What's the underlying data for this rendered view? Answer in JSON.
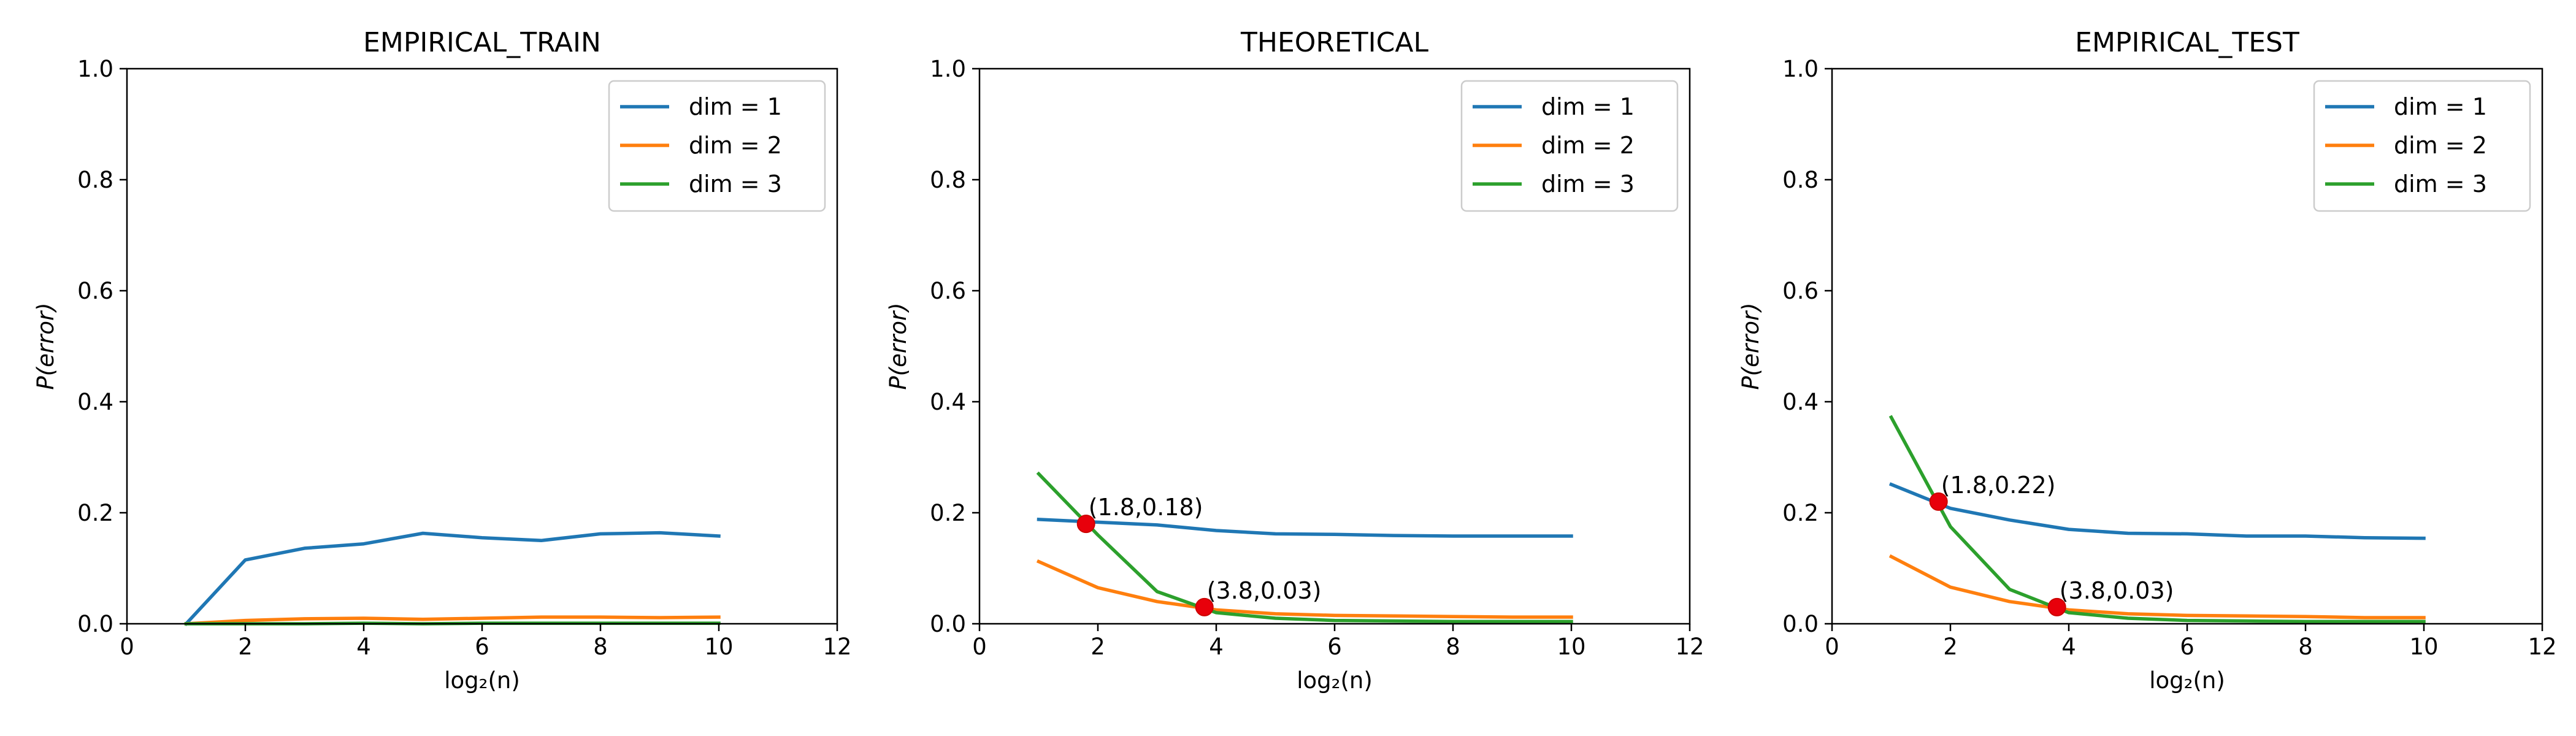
{
  "chart_data": [
    {
      "type": "line",
      "title": "EMPIRICAL_TRAIN",
      "xlabel": "log₂(n)",
      "ylabel": "P(error)",
      "xlim": [
        0,
        12
      ],
      "ylim": [
        0,
        1.0
      ],
      "xticks": [
        "0",
        "2",
        "4",
        "6",
        "8",
        "10",
        "12"
      ],
      "yticks": [
        "0.0",
        "0.2",
        "0.4",
        "0.6",
        "0.8",
        "1.0"
      ],
      "legend_position": "top-right",
      "grid": false,
      "x": [
        1,
        2,
        3,
        4,
        5,
        6,
        7,
        8,
        9,
        10
      ],
      "series": [
        {
          "name": "dim = 1",
          "color": "#1f77b4",
          "values": [
            0.0,
            0.115,
            0.136,
            0.144,
            0.163,
            0.155,
            0.15,
            0.162,
            0.164,
            0.158
          ]
        },
        {
          "name": "dim = 2",
          "color": "#ff7f0e",
          "values": [
            0.0,
            0.006,
            0.009,
            0.01,
            0.008,
            0.01,
            0.012,
            0.012,
            0.011,
            0.012
          ]
        },
        {
          "name": "dim = 3",
          "color": "#2ca02c",
          "values": [
            0.0,
            0.0,
            0.0,
            0.001,
            0.0,
            0.001,
            0.001,
            0.001,
            0.001,
            0.001
          ]
        }
      ],
      "annotations": []
    },
    {
      "type": "line",
      "title": "THEORETICAL",
      "xlabel": "log₂(n)",
      "ylabel": "P(error)",
      "xlim": [
        0,
        12
      ],
      "ylim": [
        0,
        1.0
      ],
      "xticks": [
        "0",
        "2",
        "4",
        "6",
        "8",
        "10",
        "12"
      ],
      "yticks": [
        "0.0",
        "0.2",
        "0.4",
        "0.6",
        "0.8",
        "1.0"
      ],
      "legend_position": "top-right",
      "grid": false,
      "x": [
        1,
        2,
        3,
        4,
        5,
        6,
        7,
        8,
        9,
        10
      ],
      "series": [
        {
          "name": "dim = 1",
          "color": "#1f77b4",
          "values": [
            0.188,
            0.183,
            0.178,
            0.168,
            0.162,
            0.161,
            0.159,
            0.158,
            0.158,
            0.158
          ]
        },
        {
          "name": "dim = 2",
          "color": "#ff7f0e",
          "values": [
            0.112,
            0.065,
            0.04,
            0.025,
            0.018,
            0.015,
            0.014,
            0.013,
            0.012,
            0.012
          ]
        },
        {
          "name": "dim = 3",
          "color": "#2ca02c",
          "values": [
            0.27,
            0.16,
            0.058,
            0.02,
            0.01,
            0.006,
            0.005,
            0.004,
            0.004,
            0.004
          ]
        }
      ],
      "annotations": [
        {
          "x": 1.8,
          "y": 0.18,
          "label": "(1.8,0.18)"
        },
        {
          "x": 3.8,
          "y": 0.03,
          "label": "(3.8,0.03)"
        }
      ]
    },
    {
      "type": "line",
      "title": "EMPIRICAL_TEST",
      "xlabel": "log₂(n)",
      "ylabel": "P(error)",
      "xlim": [
        0,
        12
      ],
      "ylim": [
        0,
        1.0
      ],
      "xticks": [
        "0",
        "2",
        "4",
        "6",
        "8",
        "10",
        "12"
      ],
      "yticks": [
        "0.0",
        "0.2",
        "0.4",
        "0.6",
        "0.8",
        "1.0"
      ],
      "legend_position": "top-right",
      "grid": false,
      "x": [
        1,
        2,
        3,
        4,
        5,
        6,
        7,
        8,
        9,
        10
      ],
      "series": [
        {
          "name": "dim = 1",
          "color": "#1f77b4",
          "values": [
            0.251,
            0.208,
            0.187,
            0.17,
            0.163,
            0.162,
            0.158,
            0.158,
            0.155,
            0.154
          ]
        },
        {
          "name": "dim = 2",
          "color": "#ff7f0e",
          "values": [
            0.121,
            0.066,
            0.04,
            0.025,
            0.018,
            0.015,
            0.014,
            0.013,
            0.011,
            0.011
          ]
        },
        {
          "name": "dim = 3",
          "color": "#2ca02c",
          "values": [
            0.372,
            0.175,
            0.062,
            0.02,
            0.01,
            0.006,
            0.005,
            0.004,
            0.004,
            0.004
          ]
        }
      ],
      "annotations": [
        {
          "x": 1.8,
          "y": 0.22,
          "label": "(1.8,0.22)"
        },
        {
          "x": 3.8,
          "y": 0.03,
          "label": "(3.8,0.03)"
        }
      ]
    }
  ]
}
